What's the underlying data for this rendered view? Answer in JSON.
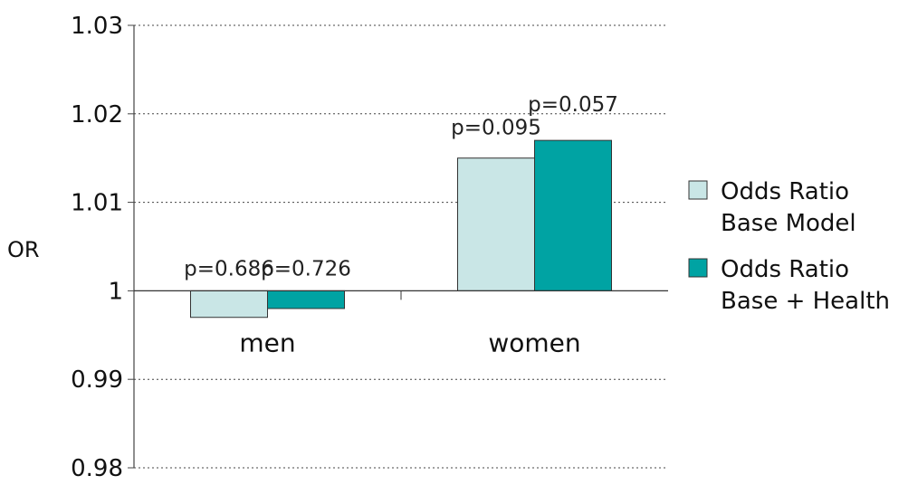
{
  "chart_data": {
    "type": "bar",
    "title": "",
    "xlabel": "",
    "ylabel": "OR",
    "categories": [
      "men",
      "women"
    ],
    "ylim": [
      0.98,
      1.03
    ],
    "yticks": [
      "0.98",
      "0.99",
      "1",
      "1.01",
      "1.02",
      "1.03"
    ],
    "grid": true,
    "legend_position": "right",
    "series": [
      {
        "name": "Odds Ratio Base Model",
        "legend_lines": [
          "Odds Ratio",
          "Base Model"
        ],
        "color": "#c9e6e6",
        "values": [
          0.997,
          1.015
        ],
        "labels": [
          "p=0.686",
          "p=0.095"
        ]
      },
      {
        "name": "Odds Ratio Base + Health",
        "legend_lines": [
          "Odds Ratio",
          "Base + Health"
        ],
        "color": "#00a3a3",
        "values": [
          0.998,
          1.017
        ],
        "labels": [
          "p=0.726",
          "p=0.057"
        ]
      }
    ]
  }
}
